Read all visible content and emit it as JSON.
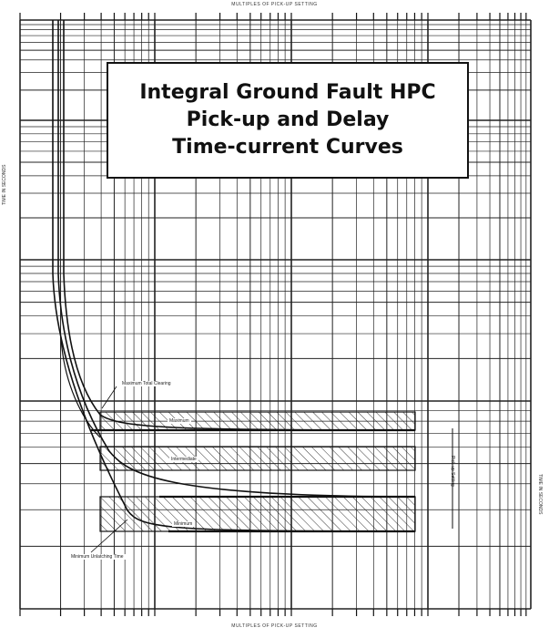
{
  "chart_data": {
    "type": "line",
    "title": [
      "Integral Ground Fault HPC",
      "Pick-up and Delay",
      "Time-current Curves"
    ],
    "xlabel": "MULTIPLES OF PICK-UP SETTING",
    "ylabel": "TIME IN SECONDS",
    "x_scale": "log",
    "y_scale": "log",
    "grid": true,
    "series": [
      {
        "name": "Maximum Total Clearing",
        "type": "curve"
      },
      {
        "name": "Maximum",
        "type": "band"
      },
      {
        "name": "Intermediate",
        "type": "band"
      },
      {
        "name": "Minimum",
        "type": "band"
      },
      {
        "name": "Minimum Unlatching Time",
        "type": "curve"
      }
    ]
  },
  "labels": {
    "axis_top": "MULTIPLES OF PICK-UP SETTING",
    "axis_bottom": "MULTIPLES OF PICK-UP SETTING",
    "axis_left": "TIME IN SECONDS",
    "axis_right": "TIME IN SECONDS",
    "max_total_clearing": "Maximum Total Clearing",
    "band_max": "Maximum",
    "band_int": "Intermediate",
    "band_min": "Minimum",
    "min_unlatch": "Minimum Unlatching Time",
    "vertical_note": "Pick-up Setting"
  },
  "colors": {
    "ink": "#111111",
    "grid": "#222222",
    "paper": "#ffffff"
  }
}
